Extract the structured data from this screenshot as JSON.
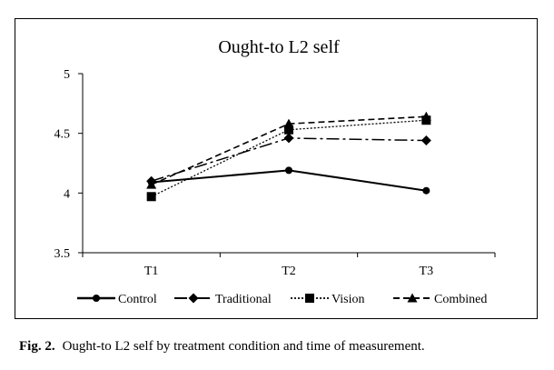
{
  "chart_data": {
    "type": "line",
    "title": "Ought-to L2 self",
    "xlabel": "",
    "ylabel": "",
    "categories": [
      "T1",
      "T2",
      "T3"
    ],
    "ylim": [
      3.5,
      5
    ],
    "yticks": [
      "3.5",
      "4",
      "4.5",
      "5"
    ],
    "grid": false,
    "legend_position": "bottom",
    "series": [
      {
        "name": "Control",
        "values": [
          4.09,
          4.19,
          4.02
        ],
        "marker": "circle",
        "dash": "solid",
        "color": "#000000"
      },
      {
        "name": "Traditional",
        "values": [
          4.1,
          4.46,
          4.44
        ],
        "marker": "diamond",
        "dash": "longdashdot",
        "color": "#000000"
      },
      {
        "name": "Vision",
        "values": [
          3.97,
          4.53,
          4.61
        ],
        "marker": "square",
        "dash": "dot",
        "color": "#000000"
      },
      {
        "name": "Combined",
        "values": [
          4.07,
          4.58,
          4.64
        ],
        "marker": "triangle",
        "dash": "dash",
        "color": "#000000"
      }
    ]
  },
  "caption": {
    "label": "Fig. 2.",
    "text": "Ought-to L2 self by treatment condition and time of measurement."
  }
}
